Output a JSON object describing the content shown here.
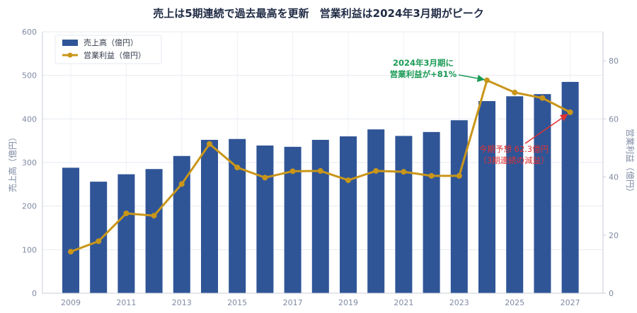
{
  "chart_data": {
    "type": "bar+line",
    "title": "売上は5期連続で過去最高を更新　営業利益は2024年3月期がピーク",
    "x": [
      2009,
      2010,
      2011,
      2012,
      2013,
      2014,
      2015,
      2016,
      2017,
      2018,
      2019,
      2020,
      2021,
      2022,
      2023,
      2024,
      2025,
      2026,
      2027
    ],
    "x_tick_labels": [
      "2009",
      "2011",
      "2013",
      "2015",
      "2017",
      "2019",
      "2021",
      "2023",
      "2025",
      "2027"
    ],
    "series": [
      {
        "name": "売上高（億円）",
        "type": "bar",
        "axis": "left",
        "color": "#2f5597",
        "values": [
          288,
          256,
          273,
          285,
          315,
          352,
          354,
          339,
          336,
          352,
          360,
          376,
          361,
          370,
          397,
          441,
          452,
          457,
          485
        ]
      },
      {
        "name": "営業利益（億円）",
        "type": "line",
        "axis": "right",
        "color": "#c9961a",
        "values": [
          14.3,
          17.9,
          27.5,
          26.7,
          37.6,
          51.4,
          43.3,
          39.8,
          42.0,
          42.1,
          38.9,
          42.1,
          41.8,
          40.4,
          40.4,
          73.3,
          69.1,
          67.2,
          62.3
        ]
      }
    ],
    "ylabel_left": "売上高（億円）",
    "ylabel_right": "営業利益（億円）",
    "ylim_left": [
      0,
      600
    ],
    "yticks_left": [
      0,
      100,
      200,
      300,
      400,
      500,
      600
    ],
    "ylim_right": [
      0,
      90
    ],
    "yticks_right": [
      0,
      20,
      40,
      60,
      80
    ],
    "legend_position": "top-left",
    "grid": true,
    "annotations": [
      {
        "lines": [
          "2024年3月期に",
          "営業利益が+81%"
        ],
        "color": "#1a9a55",
        "target_x": 2024,
        "target_y": 73.3
      },
      {
        "lines": [
          "今期予想 62.3億円",
          "（3期連続の減益）"
        ],
        "color": "#e03131",
        "target_x": 2027,
        "target_y": 62.3
      }
    ]
  }
}
